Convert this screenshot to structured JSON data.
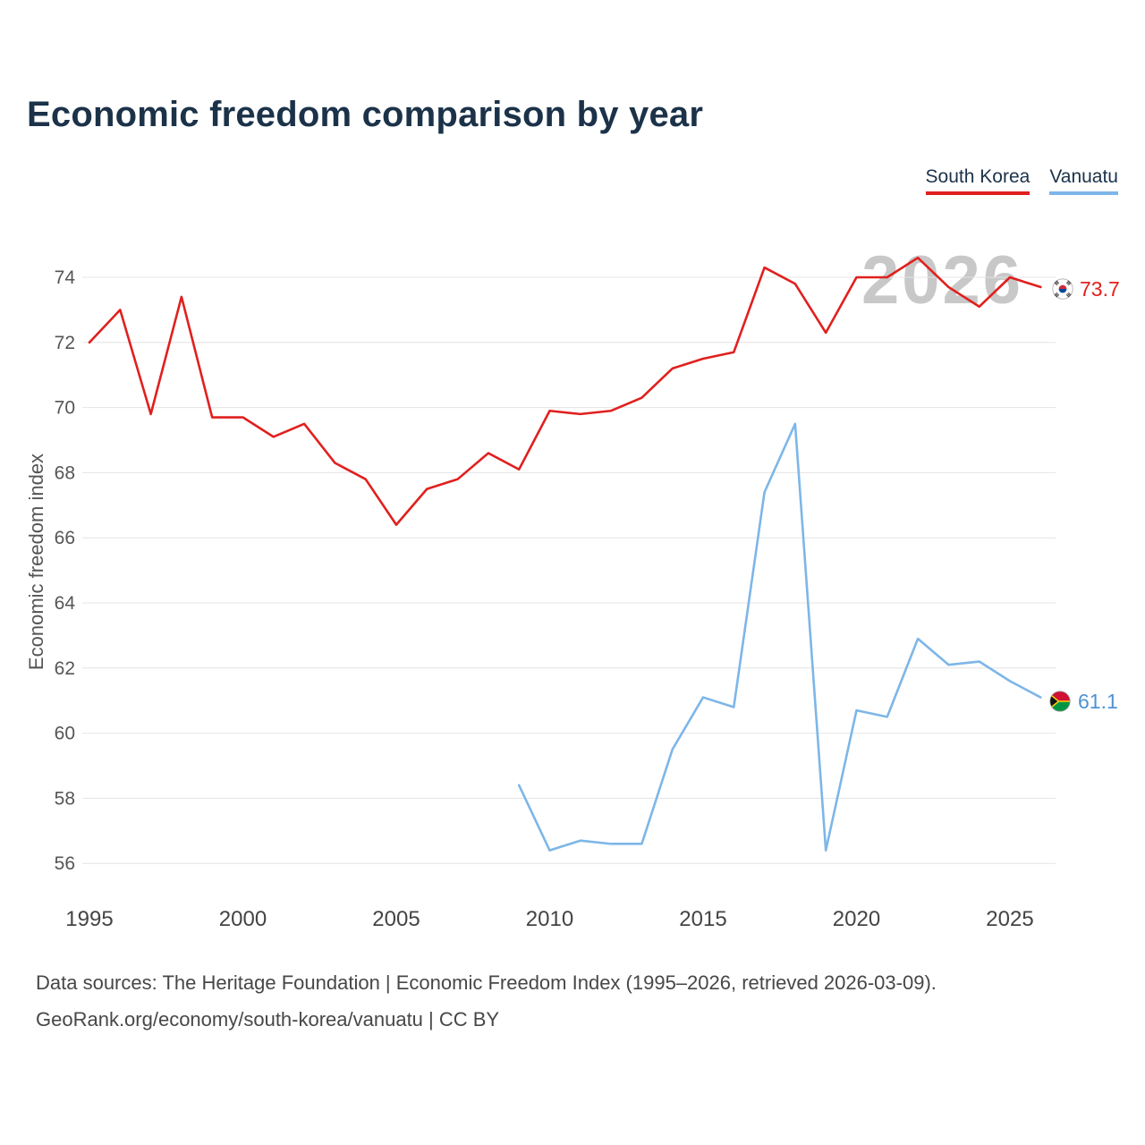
{
  "title": "Economic freedom comparison by year",
  "watermark": "2026",
  "legend": [
    {
      "label": "South Korea",
      "color": "#e0201e"
    },
    {
      "label": "Vanuatu",
      "color": "#7db6e8"
    }
  ],
  "footer": {
    "line1": "Data sources: The Heritage Foundation | Economic Freedom Index (1995–2026, retrieved 2026-03-09).",
    "line2": "GeoRank.org/economy/south-korea/vanuatu | CC BY"
  },
  "chart_data": {
    "type": "line",
    "title": "Economic freedom comparison by year",
    "xlabel": "",
    "ylabel": "Economic freedom index",
    "ylim": [
      55,
      75.5
    ],
    "yticks": [
      56,
      58,
      60,
      62,
      64,
      66,
      68,
      70,
      72,
      74
    ],
    "xticks": [
      1995,
      2000,
      2005,
      2010,
      2015,
      2020,
      2025
    ],
    "grid": "horizontal",
    "legend_position": "top-right",
    "series": [
      {
        "name": "South Korea",
        "color": "#e0201e",
        "end_label": "73.7",
        "x": [
          1995,
          1996,
          1997,
          1998,
          1999,
          2000,
          2001,
          2002,
          2003,
          2004,
          2005,
          2006,
          2007,
          2008,
          2009,
          2010,
          2011,
          2012,
          2013,
          2014,
          2015,
          2016,
          2017,
          2018,
          2019,
          2020,
          2021,
          2022,
          2023,
          2024,
          2025,
          2026
        ],
        "values": [
          72.0,
          73.0,
          69.8,
          73.4,
          69.7,
          69.7,
          69.1,
          69.5,
          68.3,
          67.8,
          66.4,
          67.5,
          67.8,
          68.6,
          68.1,
          69.9,
          69.8,
          69.9,
          70.3,
          71.2,
          71.5,
          71.7,
          74.3,
          73.8,
          72.3,
          74.0,
          74.0,
          74.6,
          73.7,
          73.1,
          74.0,
          73.7
        ]
      },
      {
        "name": "Vanuatu",
        "color": "#7db6e8",
        "end_label": "61.1",
        "x": [
          2009,
          2010,
          2011,
          2012,
          2013,
          2014,
          2015,
          2016,
          2017,
          2018,
          2019,
          2020,
          2021,
          2022,
          2023,
          2024,
          2025,
          2026
        ],
        "values": [
          58.4,
          56.4,
          56.7,
          56.6,
          56.6,
          59.5,
          61.1,
          60.8,
          67.4,
          69.5,
          56.4,
          60.7,
          60.5,
          62.9,
          62.1,
          62.2,
          61.6,
          61.1
        ]
      }
    ]
  }
}
